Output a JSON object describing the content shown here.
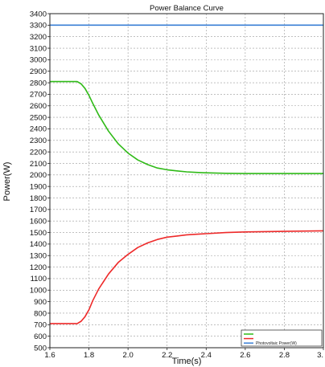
{
  "chart_data": {
    "type": "line",
    "title": "Power Balance Curve",
    "xlabel": "Time(s)",
    "ylabel": "Power(W)",
    "xlim": [
      1.6,
      3.0
    ],
    "ylim": [
      500,
      3400
    ],
    "x_ticks": [
      "1.6",
      "1.8",
      "2.0",
      "2.2",
      "2.4",
      "2.6",
      "2.8",
      "3."
    ],
    "y_ticks": [
      "500",
      "600",
      "700",
      "800",
      "900",
      "1000",
      "1100",
      "1200",
      "1300",
      "1400",
      "1500",
      "1600",
      "1700",
      "1800",
      "1900",
      "2000",
      "2100",
      "2200",
      "2300",
      "2400",
      "2500",
      "2600",
      "2700",
      "2800",
      "2900",
      "3000",
      "3100",
      "3200",
      "3300",
      "3400"
    ],
    "grid": true,
    "legend_position": "bottom-right",
    "series": [
      {
        "name": "Photovoltaic Power(W)",
        "color": "#3a7fd6",
        "x": [
          1.6,
          3.0
        ],
        "values": [
          3300,
          3300
        ]
      },
      {
        "name": "",
        "color": "#2fba17",
        "x": [
          1.6,
          1.74,
          1.76,
          1.78,
          1.8,
          1.82,
          1.85,
          1.9,
          1.95,
          2.0,
          2.05,
          2.1,
          2.15,
          2.2,
          2.25,
          2.3,
          2.35,
          2.4,
          2.5,
          2.6,
          2.8,
          3.0
        ],
        "values": [
          2810,
          2810,
          2790,
          2750,
          2690,
          2620,
          2520,
          2380,
          2270,
          2190,
          2130,
          2090,
          2060,
          2045,
          2035,
          2027,
          2022,
          2018,
          2014,
          2012,
          2012,
          2012
        ]
      },
      {
        "name": "",
        "color": "#ee2a2a",
        "x": [
          1.6,
          1.74,
          1.76,
          1.78,
          1.8,
          1.82,
          1.85,
          1.9,
          1.95,
          2.0,
          2.05,
          2.1,
          2.15,
          2.2,
          2.25,
          2.3,
          2.35,
          2.4,
          2.5,
          2.6,
          2.8,
          3.0
        ],
        "values": [
          710,
          710,
          730,
          770,
          830,
          910,
          1010,
          1140,
          1240,
          1310,
          1370,
          1410,
          1440,
          1460,
          1470,
          1480,
          1485,
          1490,
          1500,
          1505,
          1510,
          1515
        ]
      }
    ]
  }
}
